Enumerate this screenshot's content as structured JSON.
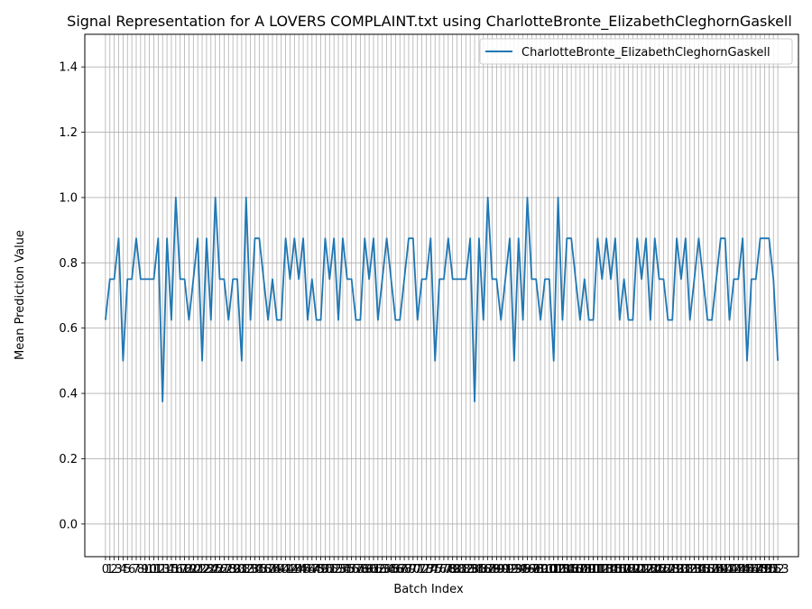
{
  "chart_data": {
    "type": "line",
    "title": "Signal Representation for A LOVERS COMPLAINT.txt using CharlotteBronte_ElizabethCleghornGaskell",
    "xlabel": "Batch Index",
    "ylabel": "Mean Prediction Value",
    "ylim": [
      -0.1,
      1.5
    ],
    "xlim": [
      -4.7,
      157.7
    ],
    "yticks": [
      0.0,
      0.2,
      0.4,
      0.6,
      0.8,
      1.0,
      1.2,
      1.4
    ],
    "ytick_labels": [
      "0.0",
      "0.2",
      "0.4",
      "0.6",
      "0.8",
      "1.0",
      "1.2",
      "1.4"
    ],
    "grid": true,
    "legend_position": "upper right",
    "line_color": "#1f77b4",
    "series": [
      {
        "name": "CharlotteBronte_ElizabethCleghornGaskell",
        "x": [
          0,
          1,
          2,
          3,
          4,
          5,
          6,
          7,
          8,
          9,
          10,
          11,
          12,
          13,
          14,
          15,
          16,
          17,
          18,
          19,
          20,
          21,
          22,
          23,
          24,
          25,
          26,
          27,
          28,
          29,
          30,
          31,
          32,
          33,
          34,
          35,
          36,
          37,
          38,
          39,
          40,
          41,
          42,
          43,
          44,
          45,
          46,
          47,
          48,
          49,
          50,
          51,
          52,
          53,
          54,
          55,
          56,
          57,
          58,
          59,
          60,
          61,
          62,
          63,
          64,
          65,
          66,
          67,
          68,
          69,
          70,
          71,
          72,
          73,
          74,
          75,
          76,
          77,
          78,
          79,
          80,
          81,
          82,
          83,
          84,
          85,
          86,
          87,
          88,
          89,
          90,
          91,
          92,
          93,
          94,
          95,
          96,
          97,
          98,
          99,
          100,
          101,
          102,
          103,
          104,
          105,
          106,
          107,
          108,
          109,
          110,
          111,
          112,
          113,
          114,
          115,
          116,
          117,
          118,
          119,
          120,
          121,
          122,
          123,
          124,
          125,
          126,
          127,
          128,
          129,
          130,
          131,
          132,
          133,
          134,
          135,
          136,
          137,
          138,
          139,
          140,
          141,
          142,
          143,
          144,
          145,
          146,
          147,
          148,
          149,
          150,
          151,
          152,
          153
        ],
        "values": [
          0.625,
          0.75,
          0.75,
          0.875,
          0.5,
          0.75,
          0.75,
          0.875,
          0.75,
          0.75,
          0.75,
          0.75,
          0.875,
          0.375,
          0.875,
          0.625,
          1.0,
          0.75,
          0.75,
          0.625,
          0.75,
          0.875,
          0.5,
          0.875,
          0.625,
          1.0,
          0.75,
          0.75,
          0.625,
          0.75,
          0.75,
          0.5,
          1.0,
          0.625,
          0.875,
          0.875,
          0.75,
          0.625,
          0.75,
          0.625,
          0.625,
          0.875,
          0.75,
          0.875,
          0.75,
          0.875,
          0.625,
          0.75,
          0.625,
          0.625,
          0.875,
          0.75,
          0.875,
          0.625,
          0.875,
          0.75,
          0.75,
          0.625,
          0.625,
          0.875,
          0.75,
          0.875,
          0.625,
          0.75,
          0.875,
          0.75,
          0.625,
          0.625,
          0.75,
          0.875,
          0.875,
          0.625,
          0.75,
          0.75,
          0.875,
          0.5,
          0.75,
          0.75,
          0.875,
          0.75,
          0.75,
          0.75,
          0.75,
          0.875,
          0.375,
          0.875,
          0.625,
          1.0,
          0.75,
          0.75,
          0.625,
          0.75,
          0.875,
          0.5,
          0.875,
          0.625,
          1.0,
          0.75,
          0.75,
          0.625,
          0.75,
          0.75,
          0.5,
          1.0,
          0.625,
          0.875,
          0.875,
          0.75,
          0.625,
          0.75,
          0.625,
          0.625,
          0.875,
          0.75,
          0.875,
          0.75,
          0.875,
          0.625,
          0.75,
          0.625,
          0.625,
          0.875,
          0.75,
          0.875,
          0.625,
          0.875,
          0.75,
          0.75,
          0.625,
          0.625,
          0.875,
          0.75,
          0.875,
          0.625,
          0.75,
          0.875,
          0.75,
          0.625,
          0.625,
          0.75,
          0.875,
          0.875,
          0.625,
          0.75,
          0.75,
          0.875,
          0.5,
          0.75,
          0.75,
          0.875,
          0.875,
          0.875,
          0.75,
          0.5
        ]
      }
    ]
  }
}
